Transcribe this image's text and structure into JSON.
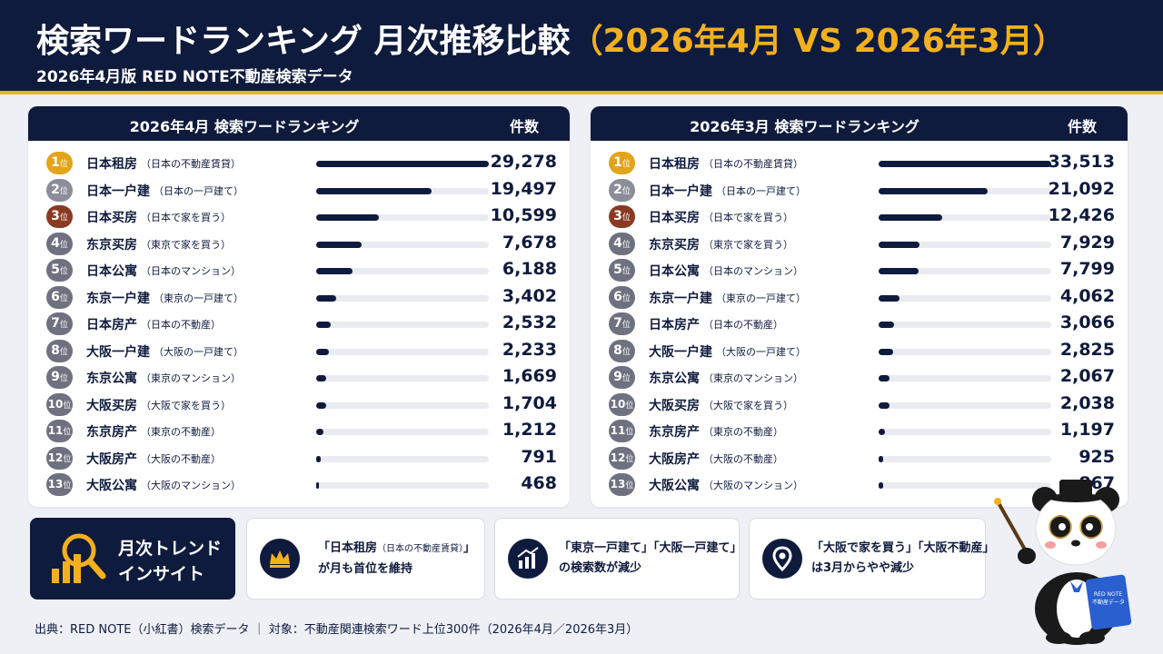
{
  "header": {
    "title_main": "検索ワードランキング 月次推移比較",
    "title_highlight": "（2026年4月 VS 2026年3月）",
    "subtitle": "2026年4月版 RED NOTE不動産検索データ"
  },
  "rank_suffix": "位",
  "colors": {
    "navy": "#0f1b3d",
    "gold": "#f2b01e"
  },
  "panels": [
    {
      "title": "2026年4月 検索ワードランキング",
      "count_label": "件数",
      "max": 29278,
      "rows": [
        {
          "rank": "1",
          "term": "日本租房",
          "note": "（日本の不動産賃貸）",
          "count": "29,278",
          "value": 29278
        },
        {
          "rank": "2",
          "term": "日本一户建",
          "note": "（日本の一戸建て）",
          "count": "19,497",
          "value": 19497
        },
        {
          "rank": "3",
          "term": "日本买房",
          "note": "（日本で家を買う）",
          "count": "10,599",
          "value": 10599
        },
        {
          "rank": "4",
          "term": "东京买房",
          "note": "（東京で家を買う）",
          "count": "7,678",
          "value": 7678
        },
        {
          "rank": "5",
          "term": "日本公寓",
          "note": "（日本のマンション）",
          "count": "6,188",
          "value": 6188
        },
        {
          "rank": "6",
          "term": "东京一户建",
          "note": "（東京の一戸建て）",
          "count": "3,402",
          "value": 3402
        },
        {
          "rank": "7",
          "term": "日本房产",
          "note": "（日本の不動産）",
          "count": "2,532",
          "value": 2532
        },
        {
          "rank": "8",
          "term": "大阪一户建",
          "note": "（大阪の一戸建て）",
          "count": "2,233",
          "value": 2233
        },
        {
          "rank": "9",
          "term": "东京公寓",
          "note": "（東京のマンション）",
          "count": "1,669",
          "value": 1669
        },
        {
          "rank": "10",
          "term": "大阪买房",
          "note": "（大阪で家を買う）",
          "count": "1,704",
          "value": 1704
        },
        {
          "rank": "11",
          "term": "东京房产",
          "note": "（東京の不動産）",
          "count": "1,212",
          "value": 1212
        },
        {
          "rank": "12",
          "term": "大阪房产",
          "note": "（大阪の不動産）",
          "count": "791",
          "value": 791
        },
        {
          "rank": "13",
          "term": "大阪公寓",
          "note": "（大阪のマンション）",
          "count": "468",
          "value": 468
        }
      ]
    },
    {
      "title": "2026年3月 検索ワードランキング",
      "count_label": "件数",
      "max": 33513,
      "rows": [
        {
          "rank": "1",
          "term": "日本租房",
          "note": "（日本の不動産賃貸）",
          "count": "33,513",
          "value": 33513
        },
        {
          "rank": "2",
          "term": "日本一户建",
          "note": "（日本の一戸建て）",
          "count": "21,092",
          "value": 21092
        },
        {
          "rank": "3",
          "term": "日本买房",
          "note": "（日本で家を買う）",
          "count": "12,426",
          "value": 12426
        },
        {
          "rank": "4",
          "term": "东京买房",
          "note": "（東京で家を買う）",
          "count": "7,929",
          "value": 7929
        },
        {
          "rank": "5",
          "term": "日本公寓",
          "note": "（日本のマンション）",
          "count": "7,799",
          "value": 7799
        },
        {
          "rank": "6",
          "term": "东京一户建",
          "note": "（東京の一戸建て）",
          "count": "4,062",
          "value": 4062
        },
        {
          "rank": "7",
          "term": "日本房产",
          "note": "（日本の不動産）",
          "count": "3,066",
          "value": 3066
        },
        {
          "rank": "8",
          "term": "大阪一户建",
          "note": "（大阪の一戸建て）",
          "count": "2,825",
          "value": 2825
        },
        {
          "rank": "9",
          "term": "东京公寓",
          "note": "（東京のマンション）",
          "count": "2,067",
          "value": 2067
        },
        {
          "rank": "10",
          "term": "大阪买房",
          "note": "（大阪で家を買う）",
          "count": "2,038",
          "value": 2038
        },
        {
          "rank": "11",
          "term": "东京房产",
          "note": "（東京の不動産）",
          "count": "1,197",
          "value": 1197
        },
        {
          "rank": "12",
          "term": "大阪房产",
          "note": "（大阪の不動産）",
          "count": "925",
          "value": 925
        },
        {
          "rank": "13",
          "term": "大阪公寓",
          "note": "（大阪のマンション）",
          "count": "867",
          "value": 867
        }
      ]
    }
  ],
  "insight": {
    "title_line1": "月次トレンド",
    "title_line2": "インサイト",
    "cards": [
      {
        "icon": "crown-icon",
        "line1": "「日本租房",
        "line1_small": "（日本の不動産賃貸）",
        "line1_end": "」",
        "line2": "が月も首位を維持"
      },
      {
        "icon": "bar-chart-icon",
        "line1": "「東京一戸建て」「大阪一戸建て」",
        "line1_small": "",
        "line1_end": "",
        "line2": "の検索数が減少"
      },
      {
        "icon": "map-pin-icon",
        "line1": "「大阪で家を買う」「大阪不動産」",
        "line1_small": "",
        "line1_end": "",
        "line2": "は3月からやや減少"
      }
    ]
  },
  "mascot": {
    "book_line1": "RED NOTE",
    "book_line2": "不動産データ"
  },
  "footer": "出典：RED NOTE（小紅書）検索データ ｜ 対象：不動産関連検索ワード上位300件（2026年4月／2026年3月）"
}
